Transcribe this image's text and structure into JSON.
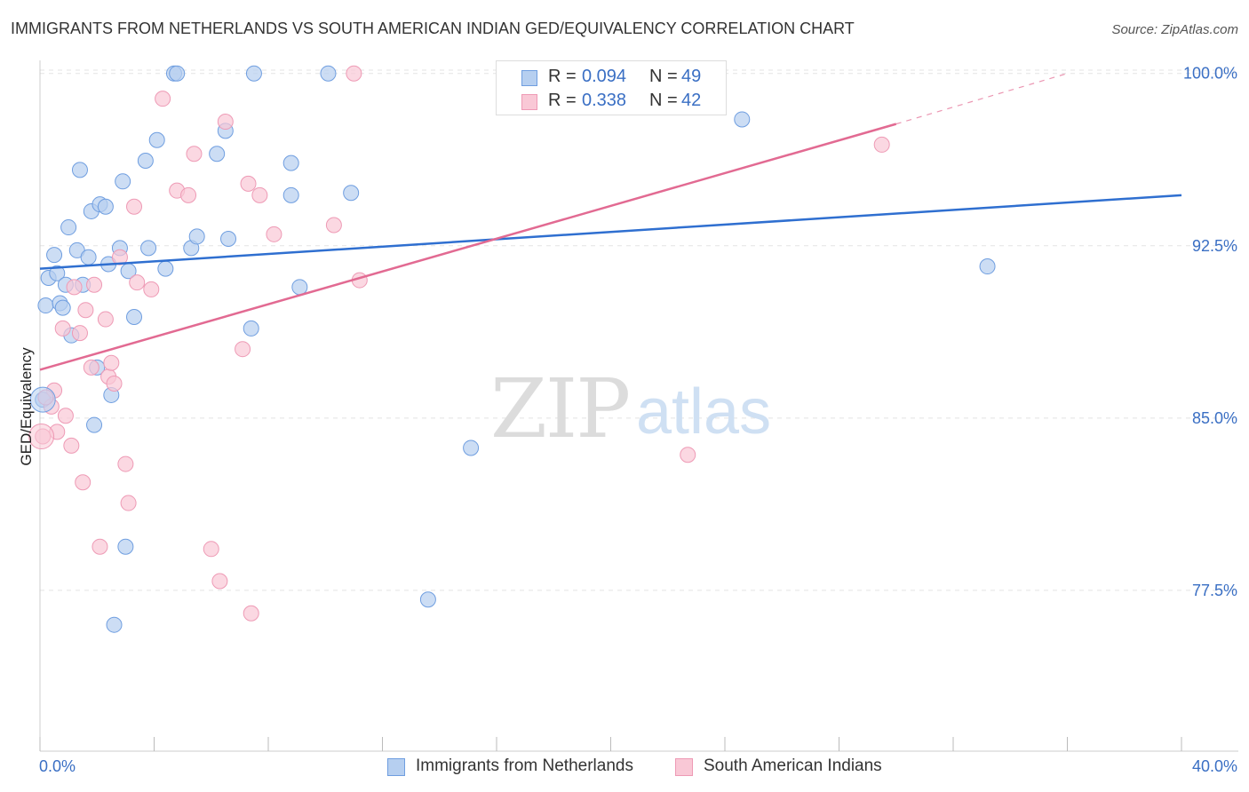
{
  "title": "IMMIGRANTS FROM NETHERLANDS VS SOUTH AMERICAN INDIAN GED/EQUIVALENCY CORRELATION CHART",
  "source": "Source: ZipAtlas.com",
  "watermark": {
    "zip": "ZIP",
    "atlas": "atlas"
  },
  "colors": {
    "blue_fill": "#b6cff0",
    "blue_stroke": "#6f9ee0",
    "blue_line": "#2f6fd0",
    "pink_fill": "#f9c8d6",
    "pink_stroke": "#ee9ab5",
    "pink_line": "#e26a92",
    "axis_text": "#3a6fc4",
    "grid": "#e3e3e3"
  },
  "legend_top": {
    "series": [
      {
        "r_label": "R =",
        "r_value": "0.094",
        "n_label": "N =",
        "n_value": "49"
      },
      {
        "r_label": "R =",
        "r_value": "0.338",
        "n_label": "N =",
        "n_value": "42"
      }
    ]
  },
  "legend_bottom": [
    "Immigrants from Netherlands",
    "South American Indians"
  ],
  "chart_data": {
    "type": "scatter",
    "title": "IMMIGRANTS FROM NETHERLANDS VS SOUTH AMERICAN INDIAN GED/EQUIVALENCY CORRELATION CHART",
    "xlabel": "",
    "ylabel": "GED/Equivalency",
    "xlim": [
      0,
      40
    ],
    "ylim": [
      70.5,
      100.8
    ],
    "x_tick_labels": [
      "0.0%",
      "40.0%"
    ],
    "y_ticks": [
      77.5,
      85.0,
      92.5,
      100.0
    ],
    "y_tick_labels": [
      "77.5%",
      "85.0%",
      "92.5%",
      "100.0%"
    ],
    "grid": true,
    "series": [
      {
        "name": "Immigrants from Netherlands",
        "points": [
          [
            0.2,
            89.9
          ],
          [
            0.3,
            91.1
          ],
          [
            0.5,
            92.1
          ],
          [
            0.6,
            91.3
          ],
          [
            0.7,
            90.0
          ],
          [
            0.8,
            89.8
          ],
          [
            0.9,
            90.8
          ],
          [
            1.0,
            93.3
          ],
          [
            1.1,
            88.6
          ],
          [
            1.3,
            92.3
          ],
          [
            1.4,
            95.8
          ],
          [
            1.5,
            90.8
          ],
          [
            1.7,
            92.0
          ],
          [
            1.8,
            94.0
          ],
          [
            1.9,
            84.7
          ],
          [
            2.0,
            87.2
          ],
          [
            2.1,
            94.3
          ],
          [
            2.3,
            94.2
          ],
          [
            2.4,
            91.7
          ],
          [
            2.5,
            86.0
          ],
          [
            2.6,
            76.0
          ],
          [
            2.8,
            92.4
          ],
          [
            2.9,
            95.3
          ],
          [
            3.0,
            79.4
          ],
          [
            3.1,
            91.4
          ],
          [
            3.3,
            89.4
          ],
          [
            3.7,
            96.2
          ],
          [
            3.8,
            92.4
          ],
          [
            4.1,
            97.1
          ],
          [
            4.4,
            91.5
          ],
          [
            4.7,
            100.0
          ],
          [
            4.8,
            100.0
          ],
          [
            5.3,
            92.4
          ],
          [
            5.5,
            92.9
          ],
          [
            6.2,
            96.5
          ],
          [
            6.5,
            97.5
          ],
          [
            6.6,
            92.8
          ],
          [
            7.4,
            88.9
          ],
          [
            7.5,
            100.0
          ],
          [
            8.8,
            96.1
          ],
          [
            8.8,
            94.7
          ],
          [
            9.1,
            90.7
          ],
          [
            10.1,
            100.0
          ],
          [
            10.9,
            94.8
          ],
          [
            13.6,
            77.1
          ],
          [
            15.1,
            83.7
          ],
          [
            24.6,
            98.0
          ],
          [
            33.2,
            91.6
          ],
          [
            0.1,
            85.8
          ]
        ]
      },
      {
        "name": "South American Indians",
        "points": [
          [
            0.1,
            84.2
          ],
          [
            0.4,
            85.5
          ],
          [
            0.5,
            86.2
          ],
          [
            0.6,
            84.4
          ],
          [
            0.8,
            88.9
          ],
          [
            0.9,
            85.1
          ],
          [
            1.1,
            83.8
          ],
          [
            1.2,
            90.7
          ],
          [
            1.4,
            88.7
          ],
          [
            1.5,
            82.2
          ],
          [
            1.6,
            89.7
          ],
          [
            1.8,
            87.2
          ],
          [
            1.9,
            90.8
          ],
          [
            2.1,
            79.4
          ],
          [
            2.3,
            89.3
          ],
          [
            2.4,
            86.8
          ],
          [
            2.5,
            87.4
          ],
          [
            2.6,
            86.5
          ],
          [
            2.8,
            92.0
          ],
          [
            3.0,
            83.0
          ],
          [
            3.1,
            81.3
          ],
          [
            3.3,
            94.2
          ],
          [
            3.4,
            90.9
          ],
          [
            3.9,
            90.6
          ],
          [
            4.3,
            98.9
          ],
          [
            4.8,
            94.9
          ],
          [
            5.2,
            94.7
          ],
          [
            5.4,
            96.5
          ],
          [
            6.0,
            79.3
          ],
          [
            6.3,
            77.9
          ],
          [
            6.5,
            97.9
          ],
          [
            7.1,
            88.0
          ],
          [
            7.3,
            95.2
          ],
          [
            7.4,
            76.5
          ],
          [
            7.7,
            94.7
          ],
          [
            8.2,
            93.0
          ],
          [
            10.3,
            93.4
          ],
          [
            11.0,
            100.0
          ],
          [
            11.2,
            91.0
          ],
          [
            22.7,
            83.4
          ],
          [
            29.5,
            96.9
          ],
          [
            0.2,
            85.9
          ]
        ]
      }
    ],
    "trendlines": [
      {
        "series": "Immigrants from Netherlands",
        "x": [
          0,
          40
        ],
        "y": [
          91.5,
          94.7
        ]
      },
      {
        "series": "South American Indians",
        "x": [
          0,
          30
        ],
        "y": [
          87.1,
          97.8
        ],
        "dashed_to": [
          36,
          100.0
        ]
      }
    ]
  }
}
